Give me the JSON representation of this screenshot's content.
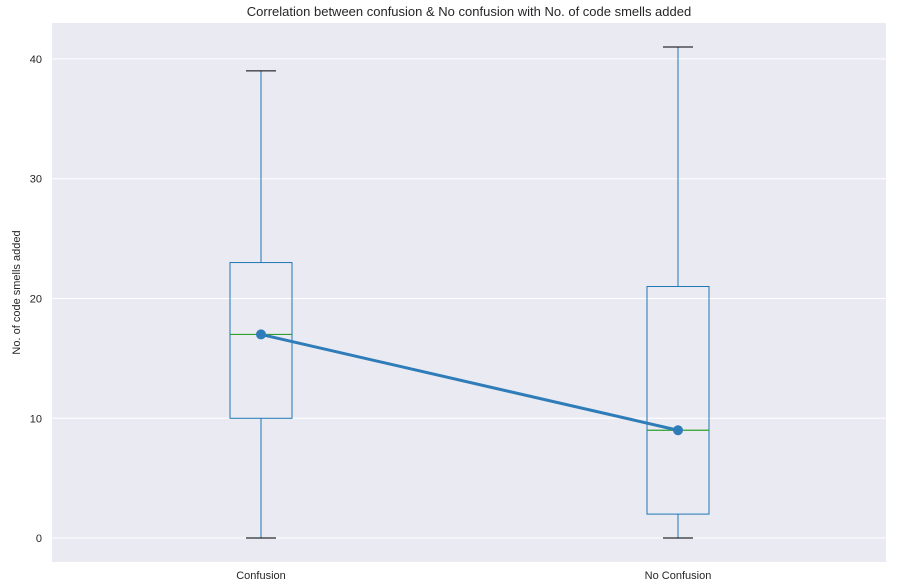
{
  "chart_data": {
    "type": "box",
    "title": "Correlation between confusion & No confusion with No. of code smells added",
    "xlabel": "",
    "ylabel": "No. of code smells added",
    "ylim": [
      -2,
      43
    ],
    "yticks": [
      0,
      10,
      20,
      30,
      40
    ],
    "grid": true,
    "categories": [
      "Confusion",
      "No Confusion"
    ],
    "boxes": [
      {
        "category": "Confusion",
        "whisker_low": 0,
        "q1": 10,
        "median": 17,
        "q3": 23,
        "whisker_high": 39
      },
      {
        "category": "No Confusion",
        "whisker_low": 0,
        "q1": 2,
        "median": 9,
        "q3": 21,
        "whisker_high": 41
      }
    ],
    "overlay_line": {
      "values": [
        17,
        9
      ]
    },
    "colors": {
      "background": "#eaeaf2",
      "grid": "#ffffff",
      "box": "#1f77b4",
      "median": "#2ca02c",
      "cap": "#000000",
      "line": "#2e7cb8"
    }
  }
}
